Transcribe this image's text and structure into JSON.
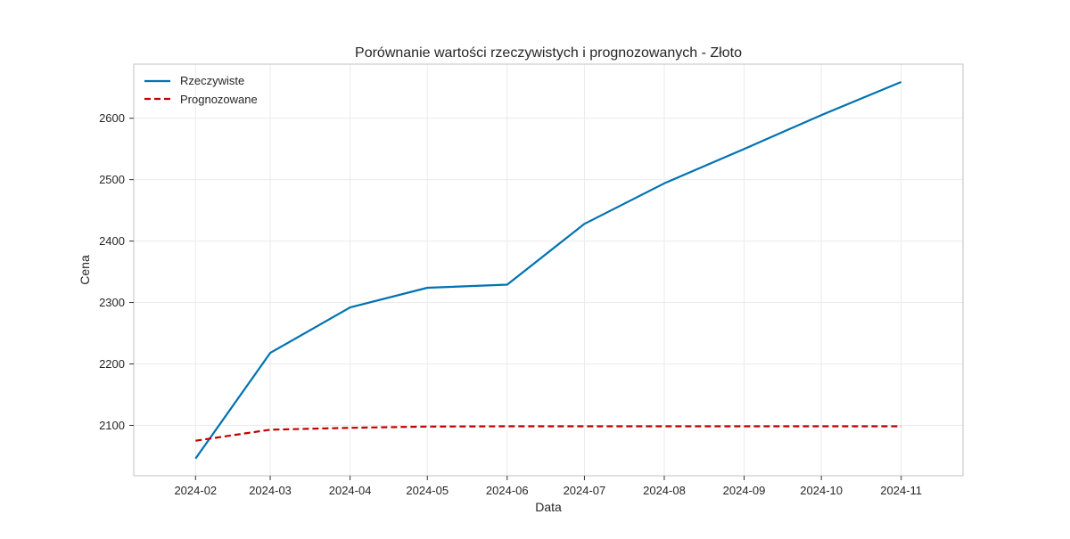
{
  "chart_data": {
    "type": "line",
    "title": "Porównanie wartości rzeczywistych i prognozowanych - Złoto",
    "xlabel": "Data",
    "ylabel": "Cena",
    "x": [
      "2024-02-01",
      "2024-03-01",
      "2024-04-01",
      "2024-05-01",
      "2024-06-01",
      "2024-07-01",
      "2024-08-01",
      "2024-09-01",
      "2024-10-01",
      "2024-11-01"
    ],
    "x_tick_labels": [
      "2024-02",
      "2024-03",
      "2024-04",
      "2024-05",
      "2024-06",
      "2024-07",
      "2024-08",
      "2024-09",
      "2024-10",
      "2024-11"
    ],
    "xlim": [
      "2024-01-08",
      "2024-11-25"
    ],
    "ylim": [
      2018,
      2688
    ],
    "y_ticks": [
      2100,
      2200,
      2300,
      2400,
      2500,
      2600
    ],
    "grid": true,
    "legend_position": "top-left",
    "series": [
      {
        "name": "Rzeczywiste",
        "color": "#0072b2",
        "style": "solid",
        "values": [
          2046,
          2218,
          2292,
          2324,
          2329,
          2428,
          2494,
          2550,
          2605,
          2659
        ]
      },
      {
        "name": "Prognozowane",
        "color": "#c00000",
        "style": "dashed",
        "values": [
          2075,
          2093,
          2096,
          2098,
          2098.5,
          2098.5,
          2098.5,
          2098.5,
          2098.5,
          2098.5
        ]
      }
    ]
  }
}
